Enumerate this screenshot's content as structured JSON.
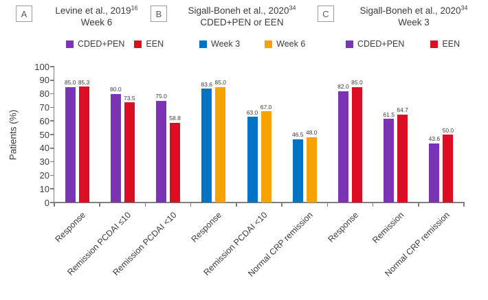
{
  "chart_data": {
    "type": "bar",
    "ylabel": "Patients (%)",
    "ylim": [
      0,
      100
    ],
    "yticks": [
      0,
      10,
      20,
      30,
      40,
      50,
      60,
      70,
      80,
      90,
      100
    ],
    "grid": false,
    "value_labels": true,
    "legend_position": "top-per-panel",
    "panels": [
      {
        "letter": "A",
        "title": "Levine et al., 2019",
        "title_superscript": "16",
        "subtitle": "Week 6",
        "categories": [
          "Response",
          "Remission PCDAI ≤10",
          "Remission PCDAI <10"
        ],
        "series": [
          {
            "name": "CDED+PEN",
            "color": "#7A34B4",
            "values": [
              85.0,
              80.0,
              75.0
            ]
          },
          {
            "name": "EEN",
            "color": "#DC0E24",
            "values": [
              85.3,
              73.5,
              58.8
            ]
          }
        ]
      },
      {
        "letter": "B",
        "title": "Sigall-Boneh et al., 2020",
        "title_superscript": "34",
        "subtitle": "CDED+PEN or EEN",
        "categories": [
          "Response",
          "Remission PCDAI <10",
          "Normal CRP remission"
        ],
        "series": [
          {
            "name": "Week 3",
            "color": "#0073C4",
            "values": [
              83.6,
              63.0,
              46.5
            ]
          },
          {
            "name": "Week 6",
            "color": "#F6A200",
            "values": [
              85.0,
              67.0,
              48.0
            ]
          }
        ]
      },
      {
        "letter": "C",
        "title": "Sigall-Boneh et al., 2020",
        "title_superscript": "34",
        "subtitle": "Week 3",
        "categories": [
          "Response",
          "Remission",
          "Normal CRP remission"
        ],
        "series": [
          {
            "name": "CDED+PEN",
            "color": "#7A34B4",
            "values": [
              82.0,
              61.5,
              43.6
            ]
          },
          {
            "name": "EEN",
            "color": "#DC0E24",
            "values": [
              85.0,
              64.7,
              50.0
            ]
          }
        ]
      }
    ]
  }
}
